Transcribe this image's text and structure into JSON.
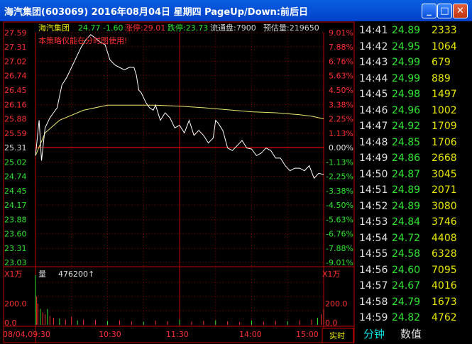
{
  "window": {
    "title": "海汽集团(603069) 2016年08月04日 星期四 PageUp/Down:前后日",
    "minimize_glyph": "_",
    "maximize_glyph": "□",
    "close_glyph": "✕"
  },
  "header": {
    "name": "海汽集团",
    "price": "24.77",
    "change": "-1.60",
    "limit_up": "涨停:29.01",
    "limit_down": "跌停:23.73",
    "float_shares": "流通盘:7900",
    "est_volume": "预估量:219650"
  },
  "notice": "本策略仅能在分时图使用!",
  "volume_panel": {
    "unit_left": "X1万",
    "unit_right": "X1万",
    "label": "量",
    "value": "476200↑",
    "left_ticks": [
      "200.0",
      "0.0"
    ],
    "right_ticks": [
      "200.0",
      "0.0"
    ]
  },
  "x_labels": [
    "08/04,09:30",
    "10:30",
    "11:30",
    "14:00",
    "15:00"
  ],
  "realtime_tab": "实时",
  "chart_data": {
    "type": "line",
    "prev_close": 25.31,
    "price_ticks": [
      "27.59",
      "27.31",
      "27.02",
      "26.74",
      "26.45",
      "26.16",
      "25.88",
      "25.59",
      "25.31",
      "25.02",
      "24.74",
      "24.45",
      "24.17",
      "23.88",
      "23.60",
      "23.31",
      "23.03"
    ],
    "pct_ticks": [
      "9.01%",
      "7.88%",
      "6.76%",
      "5.63%",
      "4.50%",
      "3.38%",
      "2.25%",
      "1.13%",
      "0.00%",
      "-1.13%",
      "-2.25%",
      "-3.38%",
      "-4.50%",
      "-5.63%",
      "-6.76%",
      "-7.88%",
      "-9.01%"
    ],
    "series": [
      {
        "x": [
          0,
          3,
          5,
          8,
          12,
          15,
          18,
          22,
          26,
          30,
          34,
          38,
          42,
          46,
          50,
          54,
          58,
          62,
          66,
          70,
          74,
          78,
          82,
          84,
          86,
          88,
          90,
          92,
          95,
          98,
          100,
          104,
          108,
          112,
          116,
          120,
          124,
          128,
          132,
          136,
          140,
          144,
          148,
          150,
          152,
          156,
          160,
          164,
          168,
          172,
          176,
          180,
          184,
          188,
          192,
          196,
          200,
          204,
          208,
          212,
          216,
          220,
          224,
          228,
          232,
          236,
          240
        ],
        "y": [
          25.15,
          25.85,
          25.05,
          25.7,
          25.9,
          26.0,
          26.1,
          26.55,
          26.7,
          26.9,
          27.1,
          27.3,
          27.45,
          27.55,
          27.48,
          27.4,
          27.35,
          27.05,
          26.95,
          26.9,
          26.85,
          26.9,
          26.9,
          26.75,
          26.45,
          26.4,
          26.3,
          26.2,
          26.1,
          26.05,
          26.15,
          25.85,
          26.0,
          25.9,
          25.7,
          25.75,
          25.6,
          25.85,
          25.55,
          25.65,
          25.55,
          25.4,
          25.5,
          25.85,
          25.8,
          25.65,
          25.3,
          25.25,
          25.35,
          25.45,
          25.3,
          25.28,
          25.15,
          25.2,
          25.3,
          25.25,
          25.1,
          25.1,
          24.95,
          24.85,
          24.9,
          24.9,
          24.85,
          24.95,
          24.7,
          24.8,
          24.77
        ]
      },
      {
        "x": [
          0,
          8,
          20,
          40,
          60,
          80,
          100,
          120,
          140,
          160,
          180,
          200,
          220,
          230,
          240
        ],
        "y": [
          25.15,
          25.6,
          25.85,
          26.05,
          26.15,
          26.15,
          26.15,
          26.13,
          26.1,
          26.06,
          26.02,
          26.0,
          25.96,
          25.93,
          25.88
        ]
      }
    ],
    "volume": {
      "x": [
        0,
        1,
        2,
        4,
        6,
        8,
        10,
        12,
        15,
        20,
        25,
        30,
        35,
        40,
        50,
        60,
        70,
        80,
        90,
        100,
        110,
        120,
        130,
        140,
        150,
        160,
        170,
        180,
        190,
        200,
        210,
        220,
        230,
        235,
        238,
        240
      ],
      "y": [
        280,
        160,
        120,
        90,
        70,
        60,
        90,
        50,
        40,
        35,
        30,
        45,
        25,
        30,
        28,
        22,
        26,
        20,
        18,
        24,
        20,
        30,
        18,
        22,
        26,
        20,
        16,
        24,
        18,
        22,
        20,
        26,
        30,
        40,
        60,
        90
      ]
    }
  },
  "ticks": [
    {
      "time": "14:41",
      "price": "24.89",
      "vol": "2333"
    },
    {
      "time": "14:42",
      "price": "24.95",
      "vol": "1064"
    },
    {
      "time": "14:43",
      "price": "24.99",
      "vol": "679"
    },
    {
      "time": "14:44",
      "price": "24.99",
      "vol": "889"
    },
    {
      "time": "14:45",
      "price": "24.98",
      "vol": "1497"
    },
    {
      "time": "14:46",
      "price": "24.96",
      "vol": "1002"
    },
    {
      "time": "14:47",
      "price": "24.92",
      "vol": "1709"
    },
    {
      "time": "14:48",
      "price": "24.85",
      "vol": "1706"
    },
    {
      "time": "14:49",
      "price": "24.86",
      "vol": "2668"
    },
    {
      "time": "14:50",
      "price": "24.87",
      "vol": "3045"
    },
    {
      "time": "14:51",
      "price": "24.89",
      "vol": "2071"
    },
    {
      "time": "14:52",
      "price": "24.89",
      "vol": "3080"
    },
    {
      "time": "14:53",
      "price": "24.84",
      "vol": "3746"
    },
    {
      "time": "14:54",
      "price": "24.72",
      "vol": "4408"
    },
    {
      "time": "14:55",
      "price": "24.58",
      "vol": "6328"
    },
    {
      "time": "14:56",
      "price": "24.60",
      "vol": "7095"
    },
    {
      "time": "14:57",
      "price": "24.67",
      "vol": "4016"
    },
    {
      "time": "14:58",
      "price": "24.79",
      "vol": "1673"
    },
    {
      "time": "14:59",
      "price": "24.82",
      "vol": "4762"
    }
  ],
  "tabs": {
    "minute": "分钟",
    "value": "数值"
  },
  "colors": {
    "red": "#c00000",
    "price_line": "#ffffff",
    "avg_line": "#e8e870",
    "up": "#ff3030",
    "down": "#2ee52e",
    "grid": "#8a0000"
  }
}
